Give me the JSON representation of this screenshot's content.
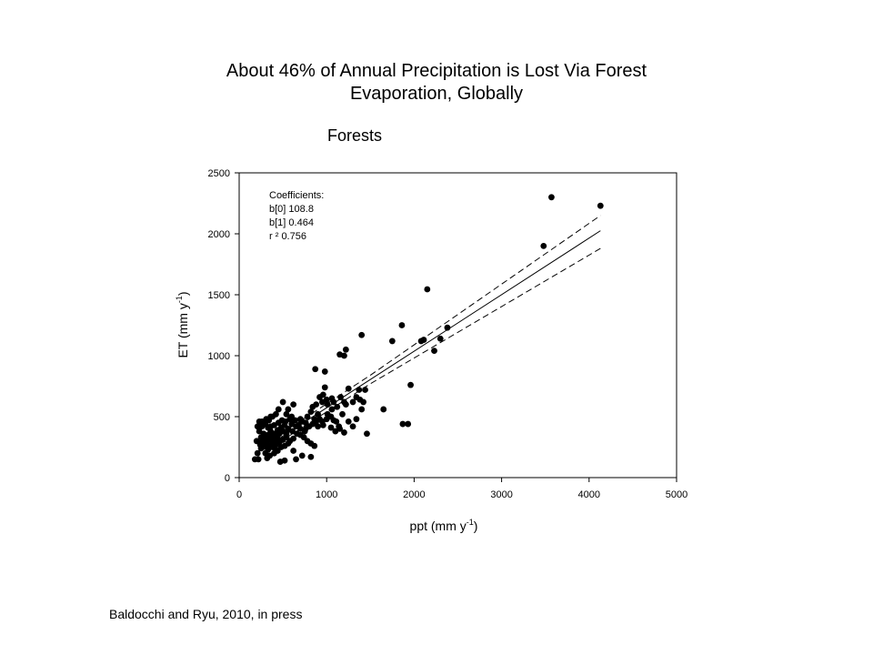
{
  "slide": {
    "title_line1": "About 46% of Annual Precipitation is Lost Via Forest",
    "title_line2": "Evaporation, Globally",
    "citation": "Baldocchi and Ryu, 2010, in press"
  },
  "chart_data": {
    "type": "scatter",
    "title": "Forests",
    "xlabel": "ppt (mm y-1)",
    "xlabel_main": "ppt (mm y",
    "xlabel_sup": "-1",
    "xlabel_close": ")",
    "ylabel": "ET (mm y-1)",
    "ylabel_main": "ET (mm y",
    "ylabel_sup": "-1",
    "ylabel_close": ")",
    "xlim": [
      0,
      5000
    ],
    "ylim": [
      0,
      2500
    ],
    "xticks": [
      0,
      1000,
      2000,
      3000,
      4000,
      5000
    ],
    "yticks": [
      0,
      500,
      1000,
      1500,
      2000,
      2500
    ],
    "grid": false,
    "coefficients": {
      "heading": "Coefficients:",
      "lines": [
        "b[0] 108.8",
        "b[1] 0.464",
        "r ²  0.756"
      ]
    },
    "regression": {
      "intercept": 108.8,
      "slope": 0.464,
      "x_range": [
        350,
        4130
      ]
    },
    "confidence_band": {
      "upper": [
        [
          350,
          300
        ],
        [
          1500,
          840
        ],
        [
          4130,
          2150
        ]
      ],
      "lower": [
        [
          350,
          240
        ],
        [
          1500,
          770
        ],
        [
          4130,
          1880
        ]
      ]
    },
    "points": [
      [
        4130,
        2230
      ],
      [
        3570,
        2300
      ],
      [
        3480,
        1900
      ],
      [
        2150,
        1545
      ],
      [
        1860,
        1250
      ],
      [
        2380,
        1230
      ],
      [
        2300,
        1140
      ],
      [
        2230,
        1040
      ],
      [
        2110,
        1130
      ],
      [
        2080,
        1120
      ],
      [
        1750,
        1120
      ],
      [
        1400,
        1170
      ],
      [
        1220,
        1050
      ],
      [
        1200,
        1000
      ],
      [
        1150,
        1010
      ],
      [
        870,
        890
      ],
      [
        980,
        870
      ],
      [
        1960,
        760
      ],
      [
        1440,
        720
      ],
      [
        1370,
        720
      ],
      [
        1650,
        560
      ],
      [
        1460,
        360
      ],
      [
        1870,
        440
      ],
      [
        1930,
        440
      ],
      [
        1220,
        600
      ],
      [
        1300,
        620
      ],
      [
        1080,
        620
      ],
      [
        1060,
        560
      ],
      [
        980,
        740
      ],
      [
        960,
        680
      ],
      [
        920,
        660
      ],
      [
        1000,
        640
      ],
      [
        1120,
        580
      ],
      [
        1180,
        520
      ],
      [
        1340,
        480
      ],
      [
        1400,
        560
      ],
      [
        1250,
        460
      ],
      [
        1110,
        460
      ],
      [
        1050,
        410
      ],
      [
        900,
        520
      ],
      [
        880,
        600
      ],
      [
        840,
        580
      ],
      [
        820,
        540
      ],
      [
        780,
        500
      ],
      [
        760,
        450
      ],
      [
        700,
        480
      ],
      [
        650,
        420
      ],
      [
        600,
        440
      ],
      [
        580,
        480
      ],
      [
        540,
        520
      ],
      [
        500,
        620
      ],
      [
        450,
        560
      ],
      [
        420,
        520
      ],
      [
        380,
        500
      ],
      [
        340,
        470
      ],
      [
        300,
        440
      ],
      [
        260,
        420
      ],
      [
        230,
        380
      ],
      [
        200,
        300
      ],
      [
        210,
        200
      ],
      [
        220,
        150
      ],
      [
        180,
        150
      ],
      [
        250,
        240
      ],
      [
        280,
        270
      ],
      [
        320,
        300
      ],
      [
        360,
        330
      ],
      [
        400,
        360
      ],
      [
        440,
        390
      ],
      [
        480,
        410
      ],
      [
        520,
        430
      ],
      [
        560,
        400
      ],
      [
        610,
        380
      ],
      [
        660,
        360
      ],
      [
        700,
        350
      ],
      [
        740,
        330
      ],
      [
        780,
        300
      ],
      [
        820,
        280
      ],
      [
        860,
        260
      ],
      [
        620,
        220
      ],
      [
        650,
        150
      ],
      [
        720,
        180
      ],
      [
        820,
        170
      ],
      [
        470,
        130
      ],
      [
        520,
        140
      ],
      [
        270,
        250
      ],
      [
        300,
        200
      ],
      [
        330,
        230
      ],
      [
        350,
        260
      ],
      [
        380,
        280
      ],
      [
        410,
        300
      ],
      [
        440,
        320
      ],
      [
        300,
        320
      ],
      [
        330,
        350
      ],
      [
        360,
        380
      ],
      [
        280,
        360
      ],
      [
        250,
        330
      ],
      [
        300,
        280
      ],
      [
        340,
        310
      ],
      [
        380,
        250
      ],
      [
        420,
        270
      ],
      [
        460,
        290
      ],
      [
        500,
        310
      ],
      [
        540,
        330
      ],
      [
        580,
        300
      ],
      [
        620,
        320
      ],
      [
        400,
        430
      ],
      [
        360,
        420
      ],
      [
        330,
        410
      ],
      [
        260,
        460
      ],
      [
        230,
        460
      ],
      [
        210,
        420
      ],
      [
        900,
        420
      ],
      [
        950,
        460
      ],
      [
        1000,
        480
      ],
      [
        860,
        480
      ],
      [
        800,
        420
      ],
      [
        750,
        380
      ],
      [
        700,
        400
      ],
      [
        1100,
        380
      ],
      [
        1150,
        400
      ],
      [
        1200,
        370
      ],
      [
        1050,
        500
      ],
      [
        1160,
        660
      ],
      [
        1250,
        730
      ],
      [
        1380,
        640
      ],
      [
        400,
        200
      ],
      [
        440,
        220
      ],
      [
        480,
        250
      ],
      [
        520,
        260
      ],
      [
        560,
        280
      ],
      [
        430,
        350
      ],
      [
        460,
        360
      ],
      [
        500,
        380
      ],
      [
        540,
        360
      ],
      [
        380,
        320
      ],
      [
        410,
        240
      ],
      [
        350,
        180
      ],
      [
        320,
        160
      ],
      [
        290,
        300
      ],
      [
        260,
        290
      ],
      [
        240,
        270
      ],
      [
        310,
        260
      ],
      [
        370,
        350
      ],
      [
        420,
        330
      ],
      [
        450,
        450
      ],
      [
        490,
        470
      ],
      [
        530,
        460
      ],
      [
        600,
        500
      ],
      [
        640,
        470
      ],
      [
        680,
        430
      ],
      [
        720,
        460
      ],
      [
        760,
        400
      ],
      [
        840,
        440
      ],
      [
        880,
        460
      ],
      [
        920,
        480
      ],
      [
        960,
        430
      ],
      [
        1010,
        520
      ],
      [
        1080,
        470
      ],
      [
        1140,
        420
      ],
      [
        1300,
        420
      ],
      [
        950,
        620
      ],
      [
        1010,
        600
      ],
      [
        1060,
        650
      ],
      [
        1200,
        620
      ],
      [
        1340,
        660
      ],
      [
        1420,
        620
      ],
      [
        620,
        600
      ],
      [
        560,
        560
      ],
      [
        360,
        500
      ],
      [
        310,
        480
      ]
    ]
  }
}
